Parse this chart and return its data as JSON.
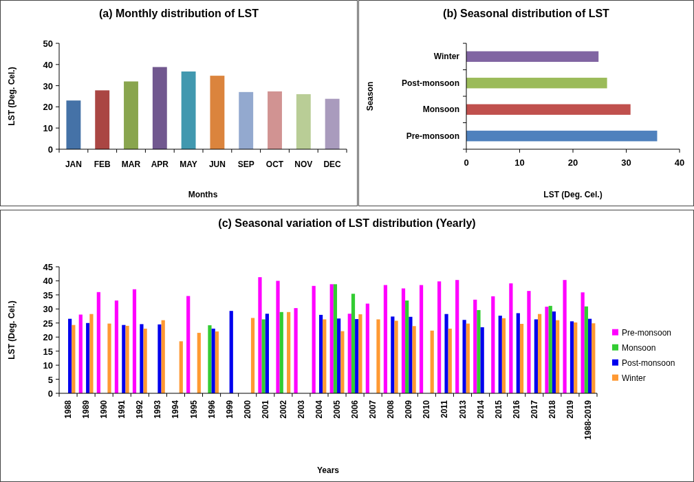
{
  "chart_data": [
    {
      "type": "bar",
      "title": "(a) Monthly distribution of LST",
      "xlabel": "Months",
      "ylabel": "LST (Deg. Cel.)",
      "categories": [
        "JAN",
        "FEB",
        "MAR",
        "APR",
        "MAY",
        "JUN",
        "SEP",
        "OCT",
        "NOV",
        "DEC"
      ],
      "values": [
        23,
        27.8,
        32,
        38.8,
        36.7,
        34.7,
        27,
        27.3,
        26,
        23.8
      ],
      "colors": [
        "#4572a7",
        "#aa4643",
        "#89a54e",
        "#71588f",
        "#4198af",
        "#db843d",
        "#93a9cf",
        "#d19392",
        "#b9cd96",
        "#a99bbd"
      ],
      "ylim": [
        0,
        50
      ],
      "yticks": [
        0,
        10,
        20,
        30,
        40,
        50
      ]
    },
    {
      "type": "bar",
      "orientation": "horizontal",
      "title": "(b) Seasonal distribution of LST",
      "xlabel": "LST (Deg. Cel.)",
      "ylabel": "Season",
      "categories": [
        "Winter",
        "Post-monsoon",
        "Monsoon",
        "Pre-monsoon"
      ],
      "values": [
        24.8,
        26.4,
        30.8,
        35.8
      ],
      "colors": [
        "#8064a2",
        "#9bbb59",
        "#c0504d",
        "#4f81bd"
      ],
      "xlim": [
        0,
        40
      ],
      "xticks": [
        0,
        10,
        20,
        30,
        40
      ]
    },
    {
      "type": "bar",
      "title": "(c) Seasonal variation of LST distribution (Yearly)",
      "xlabel": "Years",
      "ylabel": "LST (Deg. Cel.)",
      "categories": [
        "1988",
        "1989",
        "1990",
        "1991",
        "1992",
        "1993",
        "1994",
        "1995",
        "1996",
        "1999",
        "2000",
        "2001",
        "2002",
        "2003",
        "2004",
        "2005",
        "2006",
        "2007",
        "2008",
        "2009",
        "2010",
        "2011",
        "2013",
        "2014",
        "2015",
        "2016",
        "2017",
        "2018",
        "2019",
        "1988-2019"
      ],
      "ylim": [
        0,
        45
      ],
      "yticks": [
        0,
        5,
        10,
        15,
        20,
        25,
        30,
        35,
        40,
        45
      ],
      "legend": "right",
      "series": [
        {
          "name": "Pre-monsoon",
          "color": "#ff00ff",
          "values": [
            null,
            28,
            36,
            33,
            37,
            null,
            null,
            34.6,
            null,
            null,
            null,
            41.3,
            40,
            30.3,
            38.2,
            38.8,
            28.3,
            31.9,
            38.5,
            37.3,
            38.5,
            39.8,
            40.3,
            33.3,
            34.5,
            39.1,
            36.4,
            30.8,
            40.3,
            35.9
          ]
        },
        {
          "name": "Monsoon",
          "color": "#33cc33",
          "values": [
            null,
            null,
            null,
            null,
            null,
            null,
            null,
            null,
            24.2,
            null,
            null,
            26.3,
            28.9,
            null,
            null,
            38.8,
            35.4,
            null,
            null,
            33,
            null,
            null,
            null,
            29.6,
            null,
            null,
            null,
            31.1,
            null,
            30.9
          ]
        },
        {
          "name": "Post-monsoon",
          "color": "#0000ee",
          "values": [
            26.5,
            25,
            null,
            24.3,
            24.6,
            24.5,
            null,
            null,
            23,
            29.3,
            null,
            28.3,
            null,
            null,
            27.9,
            26.6,
            26.4,
            null,
            27.3,
            27.2,
            null,
            28.2,
            26.1,
            23.5,
            27.6,
            28.5,
            26.3,
            29.1,
            25.6,
            26.5
          ]
        },
        {
          "name": "Winter",
          "color": "#ff9933",
          "values": [
            24.3,
            28.2,
            24.8,
            24,
            23,
            26,
            18.5,
            21.5,
            22,
            null,
            26.8,
            null,
            28.9,
            null,
            26.3,
            22.1,
            28.1,
            26.3,
            25.8,
            23.9,
            22.3,
            23,
            24.8,
            null,
            26.7,
            24.7,
            28.2,
            26,
            25.2,
            24.9
          ]
        }
      ]
    }
  ]
}
